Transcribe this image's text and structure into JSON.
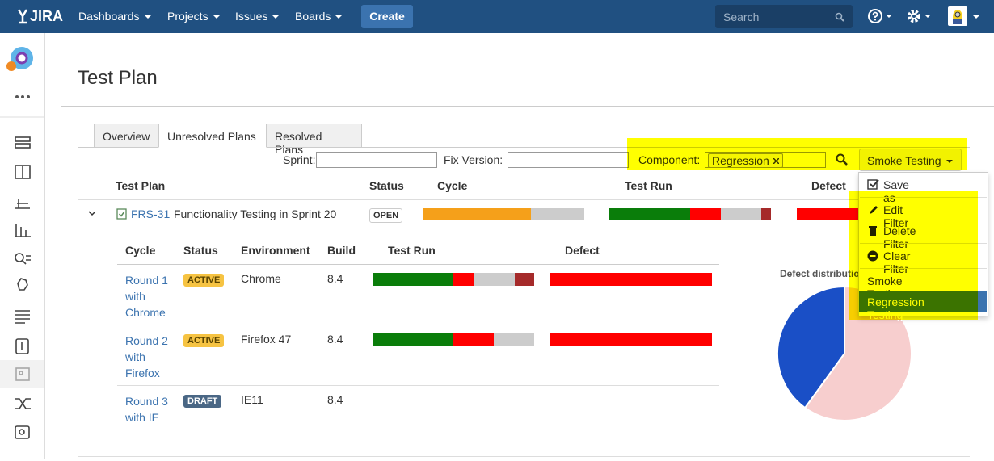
{
  "nav": {
    "logo": "JIRA",
    "menu": [
      "Dashboards",
      "Projects",
      "Issues",
      "Boards"
    ],
    "create": "Create",
    "search_placeholder": "Search"
  },
  "page": {
    "title": "Test Plan"
  },
  "tabs": [
    "Overview",
    "Unresolved Plans",
    "Resolved Plans"
  ],
  "filters": {
    "sprint_label": "Sprint:",
    "fix_version_label": "Fix Version:",
    "component_label": "Component:",
    "component_tag": "Regression",
    "saved_filter": "Smoke Testing"
  },
  "plan_table": {
    "headers": [
      "Test Plan",
      "Status",
      "Cycle",
      "Test Run",
      "Defect"
    ],
    "rows": [
      {
        "key": "FRS-31",
        "summary": "Functionality Testing in Sprint 20",
        "status": "OPEN",
        "cycle": [
          {
            "color": "#f5a01a",
            "value": 67
          },
          {
            "color": "#cccccc",
            "value": 33
          }
        ],
        "test_run": [
          {
            "color": "#0a7d0a",
            "value": 50
          },
          {
            "color": "#ff0000",
            "value": 19
          },
          {
            "color": "#cccccc",
            "value": 25
          },
          {
            "color": "#a52a2a",
            "value": 6
          }
        ],
        "defect": [
          {
            "color": "#ff0000",
            "value": 100
          }
        ]
      }
    ]
  },
  "cycle_table": {
    "headers": [
      "Cycle",
      "Status",
      "Environment",
      "Build",
      "Test Run",
      "Defect"
    ],
    "rows": [
      {
        "cycle": "Round 1 with Chrome",
        "status": "ACTIVE",
        "environment": "Chrome",
        "build": "8.4",
        "test_run": [
          {
            "color": "#0a7d0a",
            "value": 50
          },
          {
            "color": "#ff0000",
            "value": 13
          },
          {
            "color": "#cccccc",
            "value": 25
          },
          {
            "color": "#a52a2a",
            "value": 12
          }
        ],
        "defect": [
          {
            "color": "#ff0000",
            "value": 100
          }
        ]
      },
      {
        "cycle": "Round 2 with Firefox",
        "status": "ACTIVE",
        "environment": "Firefox 47",
        "build": "8.4",
        "test_run": [
          {
            "color": "#0a7d0a",
            "value": 50
          },
          {
            "color": "#ff0000",
            "value": 25
          },
          {
            "color": "#cccccc",
            "value": 25
          }
        ],
        "defect": [
          {
            "color": "#ff0000",
            "value": 100
          }
        ]
      },
      {
        "cycle": "Round 3 with IE",
        "status": "DRAFT",
        "environment": "IE11",
        "build": "8.4",
        "test_run": [],
        "defect": []
      }
    ]
  },
  "pie": {
    "title": "Defect distribution",
    "slices": [
      {
        "color": "#1a4fc6",
        "value": 40
      },
      {
        "color": "#f7cece",
        "value": 60
      }
    ]
  },
  "menu": {
    "items": [
      "Save as",
      "Edit Filter",
      "Delete Filter",
      "Clear Filter",
      "Smoke Testing",
      "Regression Testing"
    ]
  }
}
